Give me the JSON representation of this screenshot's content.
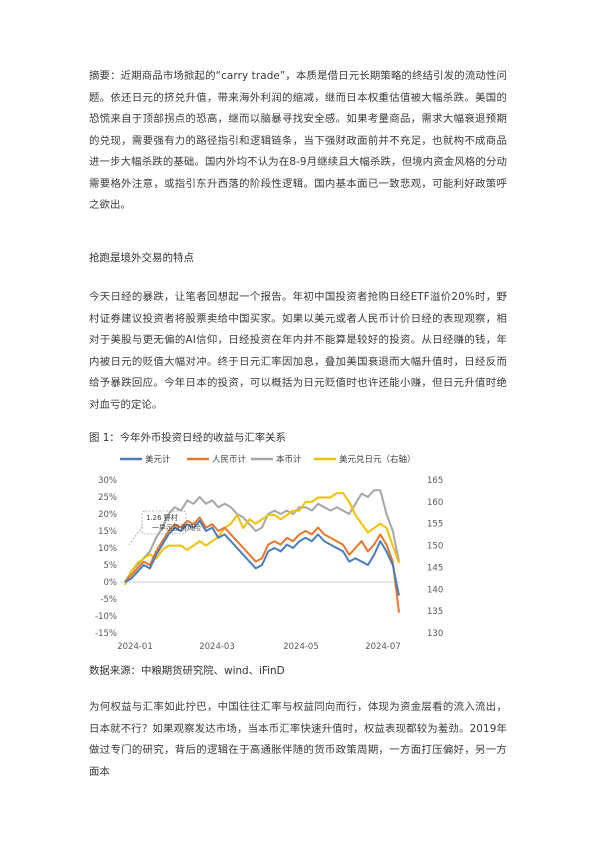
{
  "abstract": "摘要：近期商品市场掀起的“carry trade”，本质是借日元长期策略的终结引发的流动性问题。依还日元的挤兑升值，带来海外利润的缩减，继而日本权重估值被大幅杀跌。美国的恐慌来自于顶部拐点的恐高，继而以脑暴寻找安全感。如果考量商品，需求大幅衰退预期的兑现，需要强有力的路径指引和逻辑链条，当下强财政面前并不充足，也就构不成商品进一步大幅杀跌的基础。国内外均不认为在8-9月继续且大幅杀跌，但境内资金风格的分动需要格外注意，或指引东升西落的阶段性逻辑。国内基本面已一致悲观，可能利好政策呼之欲出。",
  "section_title": "抢跑是境外交易的特点",
  "para1": "今天日经的暴跌，让笔者回想起一个报告。年初中国投资者抢购日经ETF溢价20%时，野村证券建议投资者将股票卖给中国买家。如果以美元或者人民币计价日经的表现观察，相对于美股与更无偏的AI信仰，日经投资在年内并不能算是较好的投资。从日经赚的钱，年内被日元的贬值大幅对冲。终于日元汇率因加息，叠加美国衰退而大幅升值时，日经反而给予暴跌回应。今年日本的投资，可以概括为日元贬值时也许还能小赚，但日元升值时绝对血亏的定论。",
  "figure": {
    "title": "图 1：今年外币投资日经的收益与汇率关系",
    "source": "数据来源：中粮期货研究院、wind、iFinD"
  },
  "para2": "为何权益与汇率如此拧巴，中国往往汇率与权益同向而行，体现为资金层看的流入流出，日本就不行？如果观察发达市场，当本币汇率快速升值时，权益表现都较为羞劲。2019年做过专门的研究，背后的逻辑在于高通胀伴随的货币政策周期，一方面打压偏好，另一方面本",
  "chart_data": {
    "type": "line",
    "title": "",
    "x_ticks": [
      "2024-01",
      "2024-03",
      "2024-05",
      "2024-07"
    ],
    "y_left": {
      "ticks": [
        "30%",
        "25%",
        "20%",
        "15%",
        "10%",
        "5%",
        "0%",
        "-5%",
        "-10%",
        "-15%"
      ],
      "range": [
        -15,
        30
      ]
    },
    "y_right": {
      "ticks": [
        "165",
        "160",
        "155",
        "150",
        "145",
        "140",
        "135",
        "130"
      ],
      "range": [
        130,
        165
      ]
    },
    "annotation": "1.26 野村一早示投资风险",
    "legend": [
      "美元计",
      "人民币计",
      "本币计",
      "美元兑日元（右轴）"
    ],
    "colors": {
      "usd": "#4a7ebb",
      "cny": "#e8762c",
      "local": "#a6a6a6",
      "usdjpy": "#f2c200"
    },
    "series": [
      {
        "name": "美元计",
        "axis": "left",
        "values": [
          0,
          1,
          3,
          5,
          4,
          8,
          11,
          14,
          16,
          15,
          17,
          16,
          18,
          15,
          16,
          13,
          14,
          12,
          10,
          8,
          6,
          4,
          5,
          9,
          10,
          9,
          11,
          10,
          12,
          13,
          12,
          14,
          12,
          11,
          10,
          9,
          6,
          7,
          6,
          5,
          8,
          12,
          9,
          5,
          -4
        ]
      },
      {
        "name": "人民币计",
        "axis": "left",
        "values": [
          0,
          2,
          4,
          6,
          5,
          9,
          12,
          15,
          17,
          16,
          18,
          17,
          19,
          16,
          17,
          15,
          16,
          14,
          12,
          10,
          8,
          6,
          7,
          11,
          12,
          11,
          13,
          12,
          14,
          15,
          14,
          16,
          14,
          13,
          12,
          11,
          8,
          10,
          12,
          9,
          11,
          14,
          11,
          6,
          -9
        ]
      },
      {
        "name": "本币计",
        "axis": "left",
        "values": [
          0,
          3,
          5,
          7,
          9,
          13,
          16,
          20,
          22,
          21,
          24,
          23,
          25,
          23,
          24,
          22,
          23,
          22,
          20,
          19,
          17,
          15,
          16,
          20,
          21,
          20,
          21,
          20,
          22,
          22,
          21,
          23,
          22,
          21,
          22,
          21,
          20,
          23,
          26,
          25,
          27,
          27,
          20,
          15,
          6
        ]
      },
      {
        "name": "美元兑日元（右轴）",
        "axis": "right",
        "values": [
          141,
          144,
          146,
          147,
          148,
          147,
          149,
          150,
          150,
          150,
          149,
          150,
          151,
          150,
          151,
          152,
          154,
          155,
          157,
          154,
          156,
          155,
          156,
          157,
          157,
          156,
          157,
          158,
          158,
          160,
          160,
          161,
          161,
          161,
          162,
          162,
          160,
          157,
          155,
          153,
          154,
          155,
          154,
          150,
          146
        ]
      }
    ]
  },
  "colors": {
    "text": "#333333",
    "axis_text": "#595959"
  }
}
